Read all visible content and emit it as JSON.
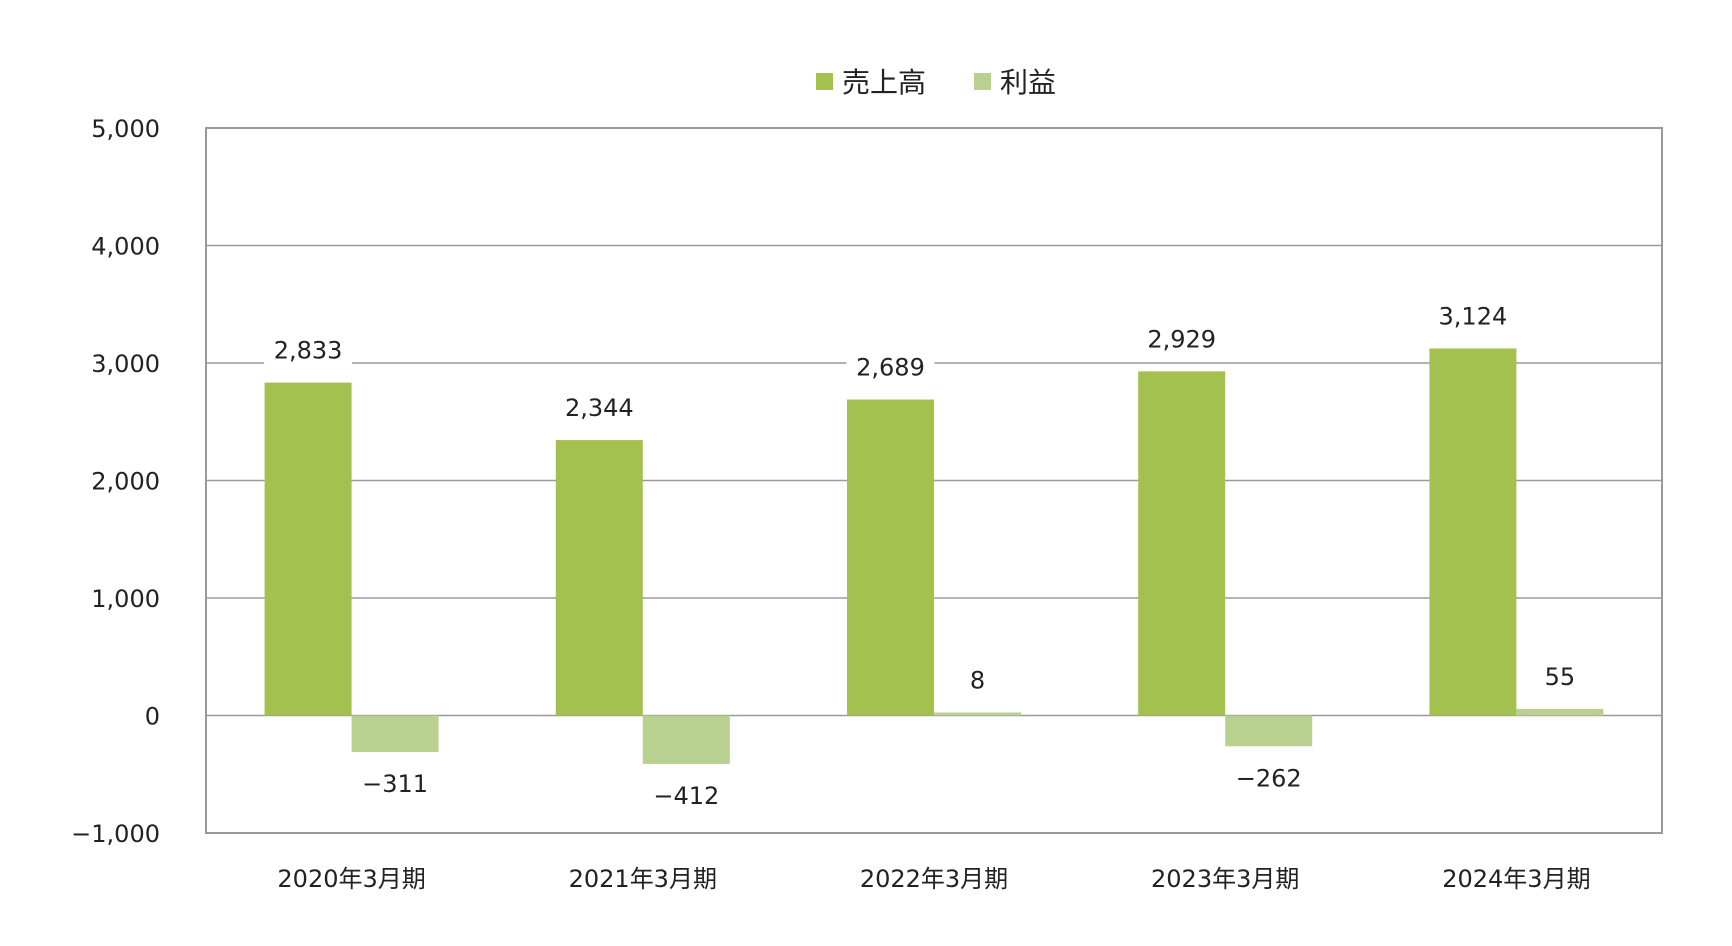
{
  "chart_data": {
    "type": "bar",
    "categories": [
      "2020年3月期",
      "2021年3月期",
      "2022年3月期",
      "2023年3月期",
      "2024年3月期"
    ],
    "series": [
      {
        "name": "売上高",
        "values": [
          2833,
          2344,
          2689,
          2929,
          3124
        ],
        "color": "#a4c150"
      },
      {
        "name": "利益",
        "values": [
          -311,
          -412,
          8,
          -262,
          55
        ],
        "color": "#b9d190"
      }
    ],
    "value_labels": [
      [
        "2,833",
        "2,344",
        "2,689",
        "2,929",
        "3,124"
      ],
      [
        "−311",
        "−412",
        "8",
        "−262",
        "55"
      ]
    ],
    "ylim": [
      -1000,
      5000
    ],
    "yticks": [
      5000,
      4000,
      3000,
      2000,
      1000,
      0,
      -1000
    ],
    "ytick_labels": [
      "5,000",
      "4,000",
      "3,000",
      "2,000",
      "1,000",
      "0",
      "−1,000"
    ],
    "grid": true,
    "legend_position": "top-center",
    "colors": {
      "gridline": "#9a9a9a",
      "frame": "#9a9a9a",
      "text": "#222222"
    }
  }
}
